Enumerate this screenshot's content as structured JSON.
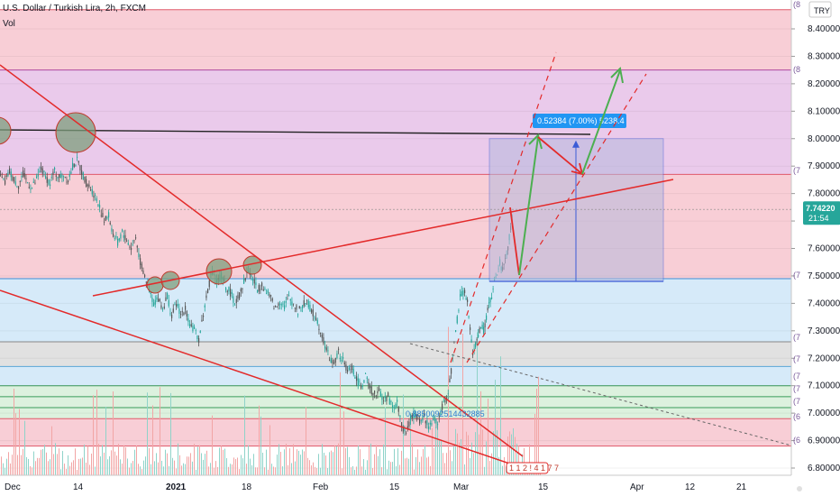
{
  "header": {
    "symbol_title": "U.S. Dollar / Turkish Lira, 2h, FXCM",
    "vol_label": "Vol",
    "currency_badge": "TRY"
  },
  "last_price": {
    "value": "7.74220",
    "countdown": "21:54"
  },
  "measure_label": "0.52384 (7.00%) 5238.4",
  "fib_label": "0.8850092514432885",
  "mini_label": "1 1 2 ! 4 1 7 7",
  "right_edge_marks": [
    "(8",
    "(8",
    "(7",
    "(7",
    "(7",
    "(7",
    "(7",
    "(7",
    "(7",
    "(6",
    "(6"
  ],
  "colors": {
    "red_zone": "#f7c6cf",
    "purple_zone": "#e8c9ee",
    "blue_zone": "#cfe6f8",
    "grey_zone": "#dcdcdc",
    "green_zone": "#d6efd8",
    "trendline": "#e32a2a",
    "arrow_green": "#4caf50",
    "measure_box": "#b6b9dd",
    "price_badge": "#2196f3",
    "candle_up": "#26a69a",
    "candle_down": "#555555"
  },
  "chart_data": {
    "type": "candlestick",
    "title": "U.S. Dollar / Turkish Lira, 2h, FXCM",
    "y_axis": {
      "min": 6.78,
      "max": 8.5,
      "ticks": [
        "8.40000",
        "8.30000",
        "8.20000",
        "8.10000",
        "8.00000",
        "7.90000",
        "7.80000",
        "7.70000",
        "7.60000",
        "7.50000",
        "7.40000",
        "7.30000",
        "7.20000",
        "7.10000",
        "7.00000",
        "6.90000",
        "6.80000"
      ]
    },
    "x_axis": {
      "ticks": [
        "Dec",
        "14",
        "2021",
        "18",
        "Feb",
        "15",
        "Mar",
        "15",
        "Apr",
        "12",
        "21"
      ]
    },
    "price_path": [
      [
        0,
        7.86
      ],
      [
        5,
        7.84
      ],
      [
        10,
        7.88
      ],
      [
        15,
        7.85
      ],
      [
        20,
        7.83
      ],
      [
        25,
        7.87
      ],
      [
        30,
        7.84
      ],
      [
        35,
        7.82
      ],
      [
        40,
        7.85
      ],
      [
        45,
        7.89
      ],
      [
        50,
        7.86
      ],
      [
        55,
        7.84
      ],
      [
        60,
        7.88
      ],
      [
        65,
        7.86
      ],
      [
        70,
        7.87
      ],
      [
        75,
        7.85
      ],
      [
        80,
        7.9
      ],
      [
        85,
        7.92
      ],
      [
        90,
        7.88
      ],
      [
        95,
        7.84
      ],
      [
        100,
        7.82
      ],
      [
        105,
        7.79
      ],
      [
        110,
        7.75
      ],
      [
        115,
        7.7
      ],
      [
        120,
        7.72
      ],
      [
        125,
        7.65
      ],
      [
        130,
        7.62
      ],
      [
        135,
        7.66
      ],
      [
        140,
        7.63
      ],
      [
        145,
        7.6
      ],
      [
        150,
        7.64
      ],
      [
        155,
        7.55
      ],
      [
        160,
        7.5
      ],
      [
        165,
        7.45
      ],
      [
        170,
        7.4
      ],
      [
        175,
        7.42
      ],
      [
        180,
        7.38
      ],
      [
        185,
        7.43
      ],
      [
        190,
        7.35
      ],
      [
        195,
        7.4
      ],
      [
        200,
        7.36
      ],
      [
        205,
        7.38
      ],
      [
        210,
        7.33
      ],
      [
        215,
        7.3
      ],
      [
        220,
        7.27
      ],
      [
        225,
        7.36
      ],
      [
        230,
        7.45
      ],
      [
        235,
        7.52
      ],
      [
        240,
        7.48
      ],
      [
        245,
        7.5
      ],
      [
        250,
        7.46
      ],
      [
        255,
        7.44
      ],
      [
        260,
        7.4
      ],
      [
        265,
        7.43
      ],
      [
        270,
        7.48
      ],
      [
        275,
        7.52
      ],
      [
        280,
        7.49
      ],
      [
        285,
        7.45
      ],
      [
        290,
        7.47
      ],
      [
        295,
        7.44
      ],
      [
        300,
        7.42
      ],
      [
        305,
        7.38
      ],
      [
        310,
        7.41
      ],
      [
        315,
        7.39
      ],
      [
        320,
        7.42
      ],
      [
        325,
        7.4
      ],
      [
        330,
        7.37
      ],
      [
        335,
        7.39
      ],
      [
        340,
        7.41
      ],
      [
        345,
        7.37
      ],
      [
        350,
        7.35
      ],
      [
        355,
        7.3
      ],
      [
        360,
        7.25
      ],
      [
        365,
        7.2
      ],
      [
        370,
        7.18
      ],
      [
        375,
        7.22
      ],
      [
        380,
        7.19
      ],
      [
        385,
        7.15
      ],
      [
        390,
        7.17
      ],
      [
        395,
        7.12
      ],
      [
        400,
        7.1
      ],
      [
        405,
        7.13
      ],
      [
        410,
        7.09
      ],
      [
        415,
        7.07
      ],
      [
        420,
        7.08
      ],
      [
        425,
        7.05
      ],
      [
        430,
        7.06
      ],
      [
        435,
        7.02
      ],
      [
        440,
        7.04
      ],
      [
        445,
        6.96
      ],
      [
        450,
        6.92
      ],
      [
        455,
        6.98
      ],
      [
        460,
        7.0
      ],
      [
        465,
        6.97
      ],
      [
        470,
        6.99
      ],
      [
        475,
        6.95
      ],
      [
        480,
        6.98
      ],
      [
        485,
        6.97
      ],
      [
        490,
        7.02
      ],
      [
        495,
        7.05
      ],
      [
        500,
        7.15
      ],
      [
        505,
        7.3
      ],
      [
        510,
        7.42
      ],
      [
        515,
        7.45
      ],
      [
        518,
        7.4
      ],
      [
        521,
        7.3
      ],
      [
        524,
        7.22
      ],
      [
        527,
        7.25
      ],
      [
        530,
        7.28
      ],
      [
        533,
        7.32
      ],
      [
        536,
        7.3
      ],
      [
        539,
        7.35
      ],
      [
        542,
        7.4
      ],
      [
        545,
        7.42
      ],
      [
        548,
        7.48
      ],
      [
        551,
        7.5
      ],
      [
        554,
        7.55
      ],
      [
        557,
        7.52
      ],
      [
        560,
        7.56
      ],
      [
        563,
        7.6
      ],
      [
        566,
        7.68
      ],
      [
        569,
        7.74
      ]
    ],
    "zones": [
      {
        "color": "red",
        "from": 7.87,
        "to": 8.47
      },
      {
        "color": "purple",
        "from": 7.87,
        "to": 8.25
      },
      {
        "color": "red",
        "from": 7.49,
        "to": 7.87
      },
      {
        "color": "blue",
        "from": 7.26,
        "to": 7.49
      },
      {
        "color": "grey",
        "from": 7.17,
        "to": 7.26
      },
      {
        "color": "blue",
        "from": 7.1,
        "to": 7.17
      },
      {
        "color": "green",
        "from": 6.98,
        "to": 7.1
      },
      {
        "color": "red",
        "from": 6.88,
        "to": 6.98
      }
    ],
    "measure_box": {
      "from": 7.48,
      "to": 8.0
    },
    "horizontal_line": 8.03,
    "grid": true,
    "legend": "none"
  }
}
